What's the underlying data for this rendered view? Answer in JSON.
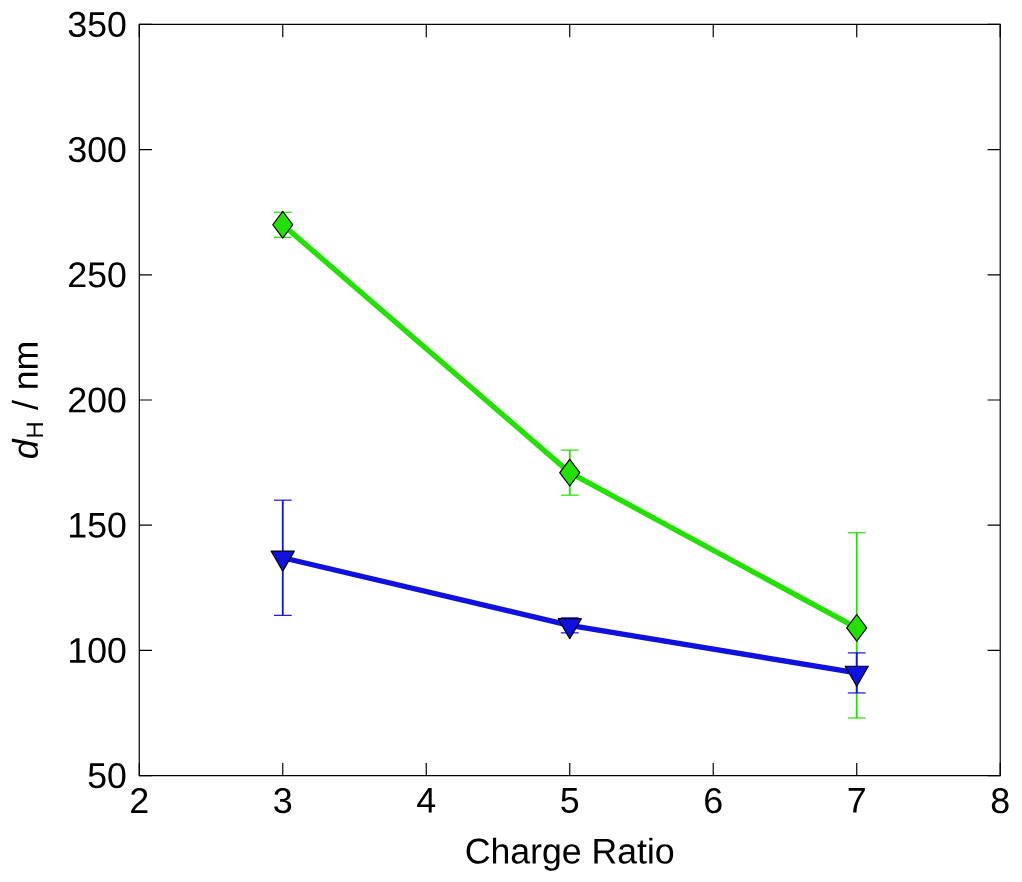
{
  "chart_data": {
    "type": "line",
    "xlabel": "Charge Ratio",
    "ylabel": "*d*$_{H}$ / nm",
    "xlim": [
      2,
      8
    ],
    "ylim": [
      50,
      350
    ],
    "xticks": [
      2,
      3,
      4,
      5,
      6,
      7,
      8
    ],
    "yticks": [
      50,
      100,
      150,
      200,
      250,
      300,
      350
    ],
    "grid": false,
    "series": [
      {
        "color": "#22e000",
        "marker": "diamond",
        "x": [
          3,
          5,
          7
        ],
        "values": [
          270,
          171,
          109
        ],
        "errors": [
          5,
          9,
          [
            73,
            147
          ]
        ]
      },
      {
        "color": "#1010e0",
        "marker": "triangle",
        "x": [
          3,
          5,
          7
        ],
        "values": [
          137,
          110,
          91
        ],
        "errors": [
          [
            114,
            160
          ],
          3,
          8
        ]
      }
    ]
  }
}
